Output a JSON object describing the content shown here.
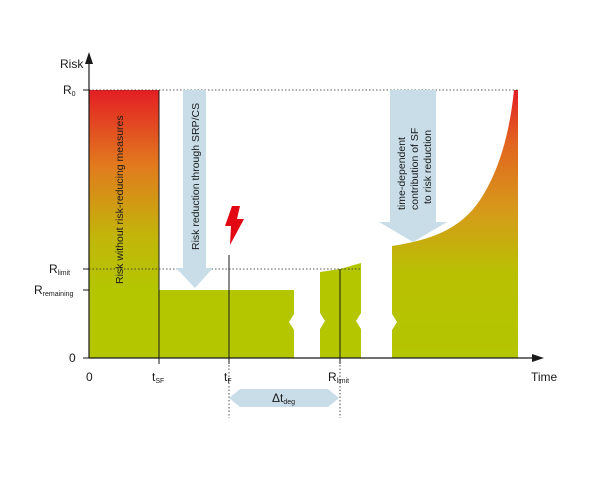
{
  "axes": {
    "y_title": "Risk",
    "x_title": "Time",
    "y_zero": "0",
    "x_zero": "0"
  },
  "y_levels": {
    "r0": {
      "main": "R",
      "sub": "0"
    },
    "rlimit": {
      "main": "R",
      "sub": "limit"
    },
    "rremaining": {
      "main": "R",
      "sub": "remaining"
    }
  },
  "x_marks": {
    "tsf": {
      "main": "t",
      "sub": "SF"
    },
    "tf": {
      "main": "t",
      "sub": "F"
    },
    "rlimit": {
      "main": "R",
      "sub": "limit"
    }
  },
  "annotations": {
    "without_measures": "Risk without risk-reducing measures",
    "srp_cs": "Risk reduction through SRP/CS",
    "sf_line1": "time-dependent",
    "sf_line2": "contribution of SF",
    "sf_line3": "to risk reduction",
    "delta": {
      "main": "Δt",
      "sub": "deg"
    }
  },
  "colors": {
    "top_red": "#e31e24",
    "mid_orange": "#e1901a",
    "bottom_green": "#b3c600",
    "callout_blue": "#c8dde8",
    "lightning": "#e30613"
  }
}
